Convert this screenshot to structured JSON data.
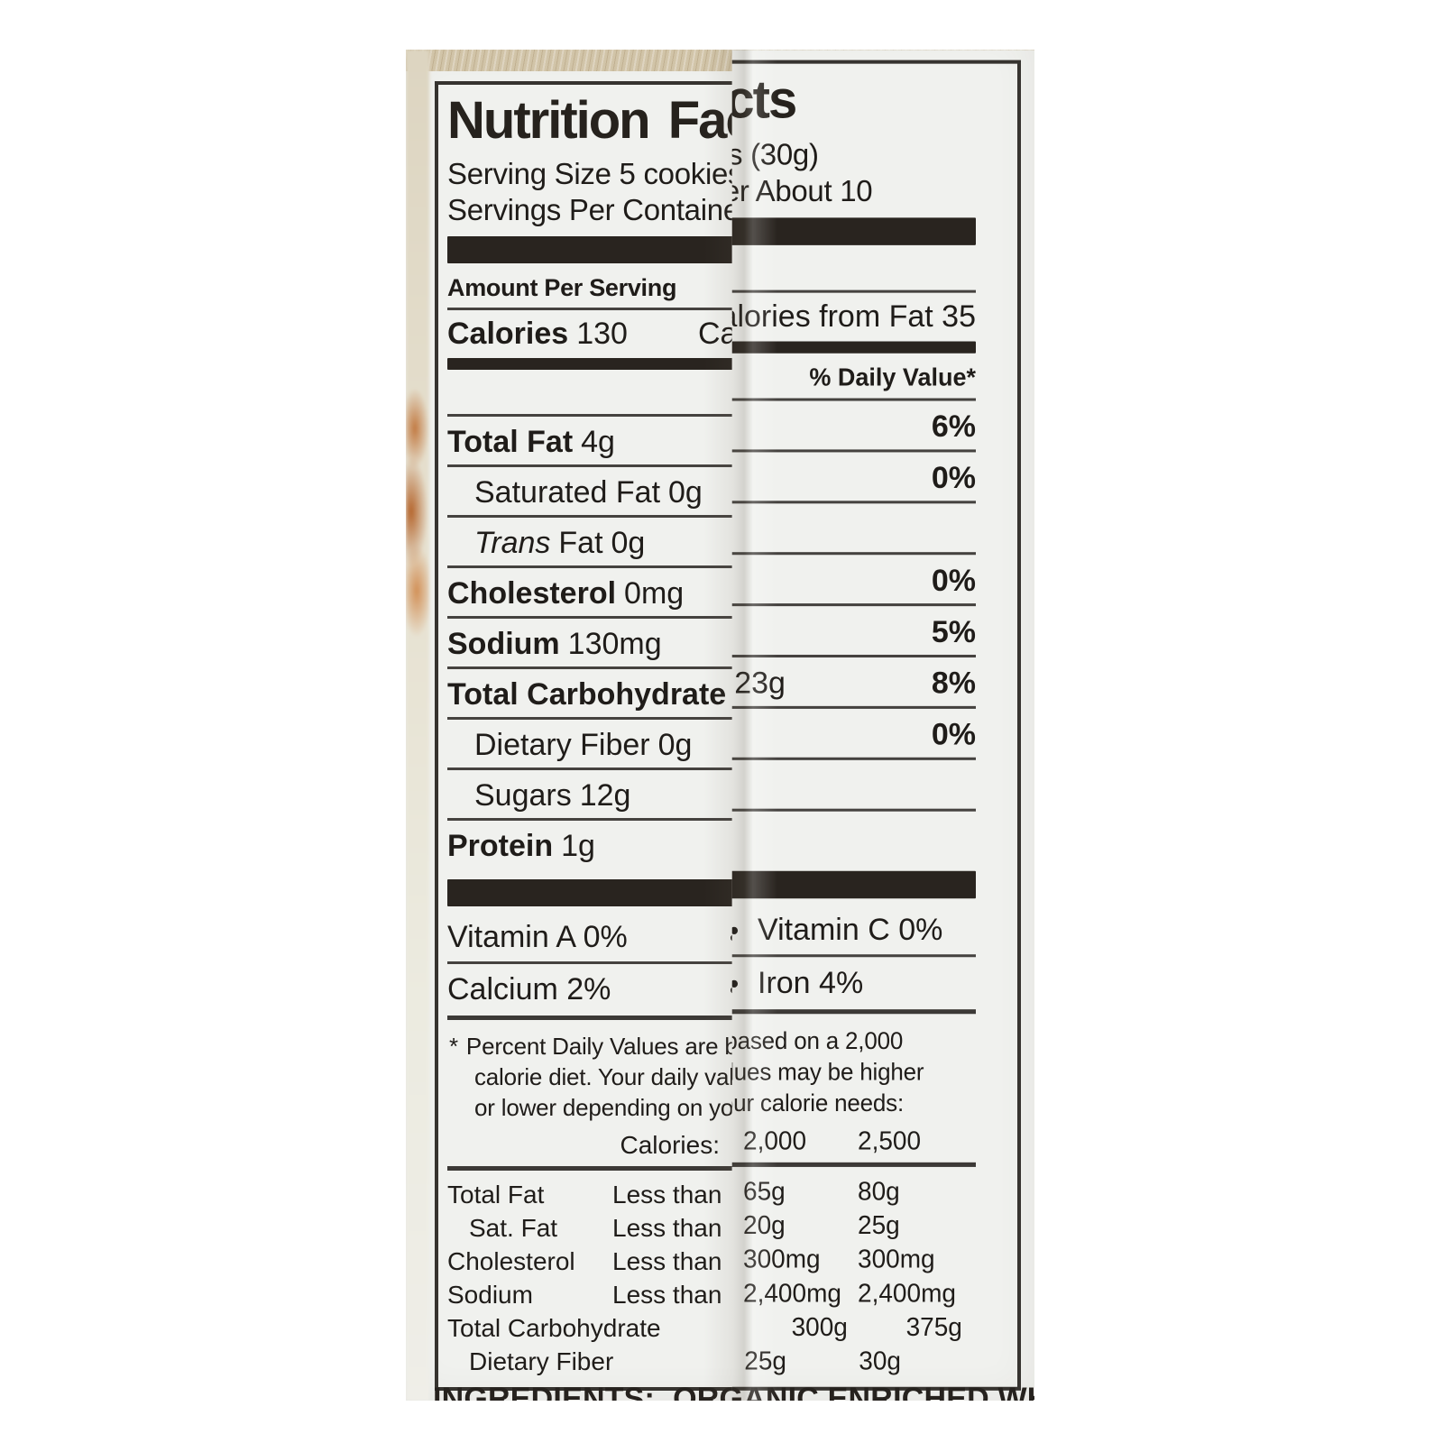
{
  "colors": {
    "paper": "#f0f1ee",
    "ink": "#1f1c19",
    "rule": "#45423f",
    "bar": "#29241f",
    "package_tan": "#d1c4a8",
    "art_orange": "#c27a42"
  },
  "nutrition_label": {
    "title": "Nutrition Facts",
    "serving_size": "Serving Size 5 cookies (30g)",
    "servings_per_container": "Servings Per Container About 10",
    "amount_per_serving": "Amount Per Serving",
    "calories": {
      "label": "Calories",
      "value": "130",
      "from_fat": "Calories from Fat 35"
    },
    "daily_value_header": "% Daily Value*",
    "nutrients": [
      {
        "name": "Total Fat",
        "amount": "4g",
        "dv": "6%"
      },
      {
        "name": "Saturated Fat",
        "amount": "0g",
        "dv": "0%"
      },
      {
        "italic_prefix": "Trans",
        "name": "Fat",
        "amount": "0g",
        "dv": ""
      },
      {
        "name": "Cholesterol",
        "amount": "0mg",
        "dv": "0%"
      },
      {
        "name": "Sodium",
        "amount": "130mg",
        "dv": "5%"
      },
      {
        "name": "Total Carbohydrate",
        "amount": "23g",
        "dv": "8%"
      },
      {
        "name": "Dietary Fiber",
        "amount": "0g",
        "dv": "0%"
      },
      {
        "name": "Sugars",
        "amount": "12g",
        "dv": ""
      },
      {
        "name": "Protein",
        "amount": "1g",
        "dv": ""
      }
    ],
    "bullet": "•",
    "micronutrients": [
      {
        "left": "Vitamin A 0%",
        "right": "Vitamin C 0%"
      },
      {
        "left": "Calcium 2%",
        "right": "Iron 4%"
      }
    ],
    "footnote_marker": "*",
    "footnote": "Percent Daily Values are based on a 2,000 calorie diet. Your daily values may be higher or lower depending on your calorie needs:",
    "dv_table": {
      "header": {
        "label": "Calories:",
        "col1": "2,000",
        "col2": "2,500"
      },
      "rows": [
        {
          "name": "Total Fat",
          "qualifier": "Less than",
          "v1": "65g",
          "v2": "80g"
        },
        {
          "name": "Sat. Fat",
          "qualifier": "Less than",
          "v1": "20g",
          "v2": "25g"
        },
        {
          "name": "Cholesterol",
          "qualifier": "Less than",
          "v1": "300mg",
          "v2": "300mg"
        },
        {
          "name": "Sodium",
          "qualifier": "Less than",
          "v1": "2,400mg",
          "v2": "2,400mg"
        },
        {
          "name": "Total Carbohydrate",
          "qualifier": "",
          "v1": "300g",
          "v2": "375g"
        },
        {
          "name": "Dietary Fiber",
          "qualifier": "",
          "v1": "25g",
          "v2": "30g"
        }
      ]
    }
  },
  "package_text": {
    "ingredients_label": "INGREDIENTS:",
    "ingredients_text": "ORGANIC ENRICHED WHEAT"
  }
}
